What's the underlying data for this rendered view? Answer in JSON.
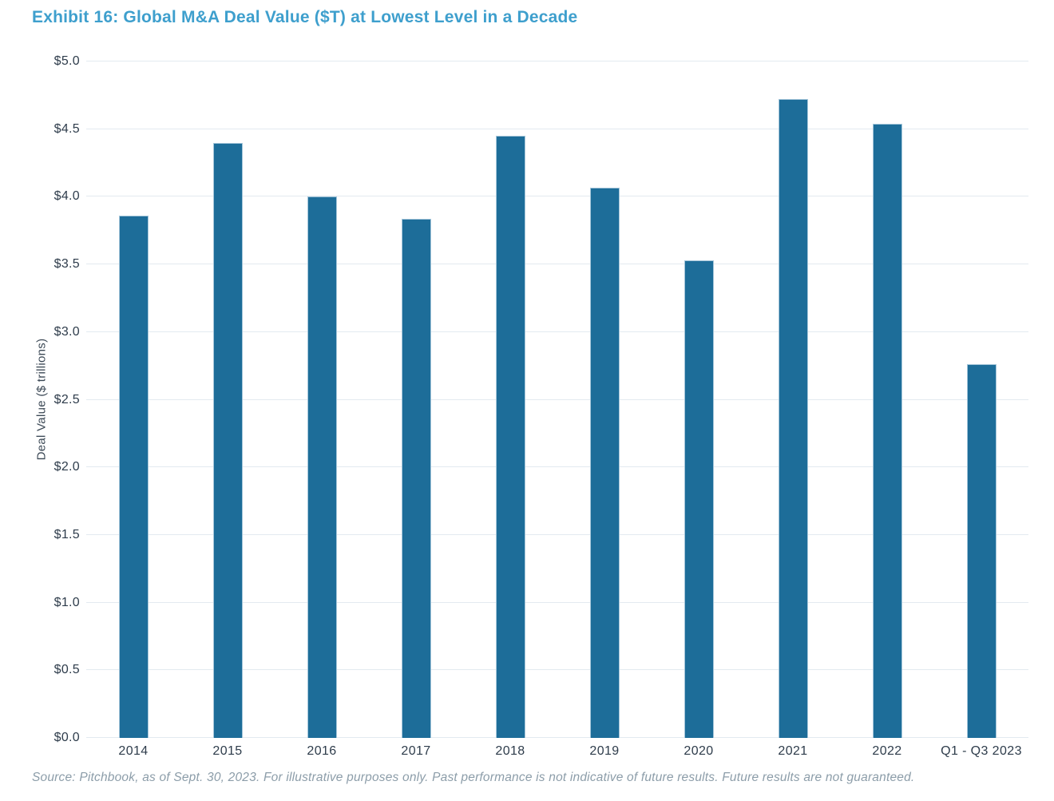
{
  "title": "Exhibit 16: Global M&A Deal Value ($T) at Lowest Level in a Decade",
  "source": "Source: Pitchbook, as of Sept. 30, 2023. For illustrative purposes only. Past performance is not indicative of future results. Future results are not guaranteed.",
  "colors": {
    "bar": "#1D6D99",
    "bar_edge": "#A5C6DA",
    "title": "#3E9FCD",
    "grid": "#E3EAF0",
    "axis_text": "#2E3C4B",
    "source_text": "#8C9DA9"
  },
  "chart_data": {
    "type": "bar",
    "title": "Exhibit 16: Global M&A Deal Value ($T) at Lowest Level in a Decade",
    "categories": [
      "2014",
      "2015",
      "2016",
      "2017",
      "2018",
      "2019",
      "2020",
      "2021",
      "2022",
      "Q1 - Q3 2023"
    ],
    "values": [
      3.86,
      4.4,
      4.0,
      3.84,
      4.45,
      4.07,
      3.53,
      4.72,
      4.54,
      2.76
    ],
    "xlabel": "",
    "ylabel": "Deal Value ($ trillions)",
    "ylim": [
      0,
      5.0
    ],
    "ytick_step": 0.5,
    "ytick_prefix": "$",
    "ytick_decimals": 1,
    "grid": "horizontal",
    "legend": "none"
  }
}
